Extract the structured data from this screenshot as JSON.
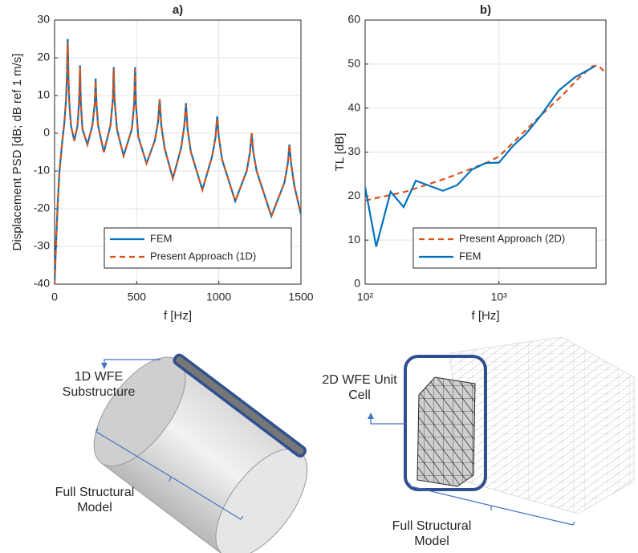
{
  "chart_data": [
    {
      "type": "line",
      "title": "a)",
      "xlabel": "f [Hz]",
      "ylabel": "Displacement PSD [dB; dB ref 1 m/s]",
      "x": [
        0,
        10,
        20,
        30,
        45,
        60,
        70,
        75,
        80,
        85,
        90,
        100,
        120,
        140,
        150,
        155,
        160,
        170,
        200,
        230,
        245,
        250,
        255,
        265,
        300,
        340,
        355,
        360,
        365,
        380,
        420,
        470,
        485,
        490,
        495,
        510,
        560,
        610,
        630,
        640,
        650,
        670,
        720,
        770,
        790,
        800,
        810,
        830,
        900,
        960,
        980,
        990,
        1000,
        1020,
        1100,
        1170,
        1190,
        1200,
        1210,
        1230,
        1320,
        1400,
        1420,
        1430,
        1440,
        1460,
        1500
      ],
      "series": [
        {
          "name": "FEM",
          "color": "#0072BD",
          "style": "solid",
          "values": [
            -40,
            -28,
            -18,
            -10,
            -3,
            3,
            9,
            15,
            25,
            14,
            8,
            2,
            -2,
            2,
            9,
            18,
            8,
            1,
            -3,
            2,
            8,
            14.5,
            8,
            2,
            -5,
            2,
            9,
            17.5,
            9,
            1,
            -6,
            1,
            8,
            17.5,
            8,
            -1,
            -8,
            -2,
            3,
            9,
            2,
            -4,
            -12,
            -4,
            2,
            8,
            1,
            -5,
            -15,
            -6,
            -1,
            4.5,
            -1,
            -7,
            -18,
            -10,
            -5,
            0,
            -5,
            -10,
            -22,
            -13,
            -8,
            -3,
            -8,
            -14,
            -21.5
          ]
        },
        {
          "name": "Present Approach (1D)",
          "color": "#D95319",
          "style": "dashed",
          "values": [
            -40,
            -28,
            -18,
            -10,
            -3,
            3,
            9,
            15,
            24,
            14,
            8,
            2,
            -2,
            2,
            9,
            17.5,
            8,
            1,
            -3,
            2,
            8,
            14,
            8,
            2,
            -5,
            2,
            9,
            17,
            9,
            1,
            -6,
            1,
            8,
            17,
            8,
            -1,
            -8,
            -2,
            3,
            9,
            2,
            -4,
            -12,
            -4,
            2,
            7.5,
            1,
            -5,
            -15,
            -6,
            -1,
            4,
            -1,
            -7,
            -18,
            -10,
            -5,
            0,
            -5,
            -10,
            -22,
            -13,
            -8,
            -3,
            -8,
            -14,
            -21.5
          ]
        }
      ],
      "xlim": [
        0,
        1500
      ],
      "xticks": [
        0,
        500,
        1000,
        1500
      ],
      "ylim": [
        -40,
        30
      ],
      "yticks": [
        -40,
        -30,
        -20,
        -10,
        0,
        10,
        20,
        30
      ],
      "grid": true,
      "legend": "lower right"
    },
    {
      "type": "line",
      "title": "b)",
      "xlabel": "f [Hz]",
      "ylabel": "TL [dB]",
      "xscale": "log",
      "series": [
        {
          "name": "Present Approach (2D)",
          "color": "#D95319",
          "style": "dashed",
          "x": [
            100,
            200,
            400,
            800,
            1000,
            2000,
            3000,
            4000,
            5000,
            5500,
            6300
          ],
          "values": [
            19,
            21,
            24,
            27.5,
            29,
            38,
            43,
            47,
            49.5,
            49.7,
            48
          ]
        },
        {
          "name": "FEM",
          "color": "#0072BD",
          "style": "solid",
          "x": [
            100,
            121,
            155,
            194,
            239,
            381,
            488,
            626,
            792,
            1000,
            1282,
            1575,
            2020,
            2800,
            3700,
            5200
          ],
          "values": [
            22,
            8.5,
            21,
            17.5,
            23.5,
            21.2,
            22.5,
            26,
            27.5,
            27.6,
            31.5,
            34,
            38,
            44,
            47,
            49.5
          ]
        }
      ],
      "xlim": [
        100,
        6300
      ],
      "xticks": [
        {
          "value": 100,
          "label": "10²"
        },
        {
          "value": 1000,
          "label": "10³"
        }
      ],
      "ylim": [
        0,
        60
      ],
      "yticks": [
        0,
        10,
        20,
        30,
        40,
        50,
        60
      ],
      "grid": true,
      "legend": "lower right"
    }
  ],
  "diagrams": {
    "left": {
      "callout": "1D WFE Substructure",
      "caption": "Full Structural Model"
    },
    "right": {
      "callout": "2D WFE Unit Cell",
      "caption": "Full Structural Model"
    }
  }
}
